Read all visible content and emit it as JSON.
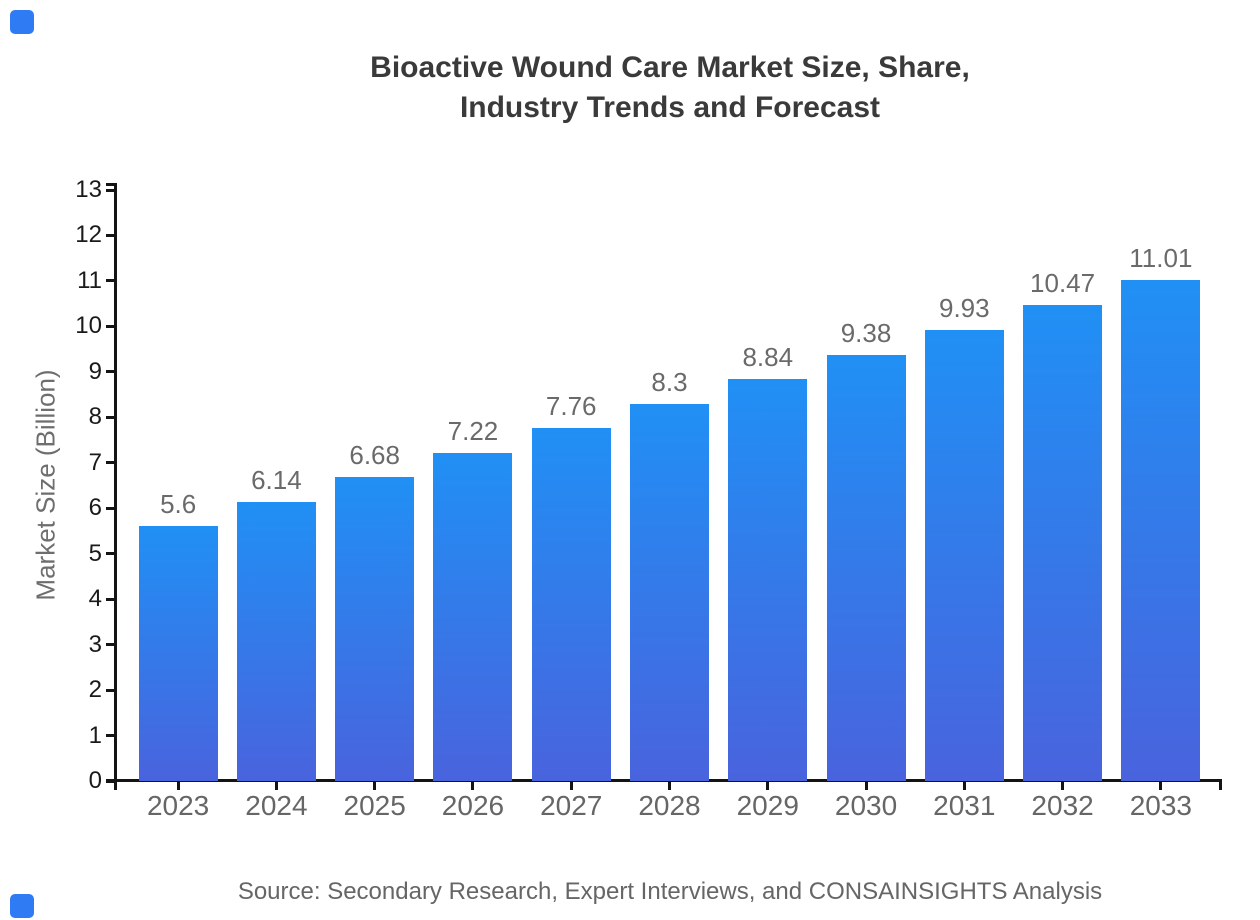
{
  "window": {
    "background": "#FFFFFF"
  },
  "brand": {
    "corner_square_color": "#2F7BF4"
  },
  "title": {
    "line1": "Bioactive Wound Care Market Size, Share,",
    "line2": "Industry Trends and Forecast"
  },
  "source_note": "Source: Secondary Research, Expert Interviews, and CONSAINSIGHTS Analysis",
  "colors": {
    "title_text": "#3A3A3A",
    "axis_line": "#141414",
    "y_tick_label": "#1A1A1A",
    "x_tick_label": "#666666",
    "value_label": "#6A6A6A",
    "y_axis_title": "#6E6E6E",
    "source_text": "#666666",
    "bar_gradient_top": "#2090F5",
    "bar_gradient_bottom": "#4963DD"
  },
  "chart_data": {
    "type": "bar",
    "title": "Bioactive Wound Care Market Size, Share, Industry Trends and Forecast",
    "categories": [
      "2023",
      "2024",
      "2025",
      "2026",
      "2027",
      "2028",
      "2029",
      "2030",
      "2031",
      "2032",
      "2033"
    ],
    "values": [
      5.6,
      6.14,
      6.68,
      7.22,
      7.76,
      8.3,
      8.84,
      9.38,
      9.93,
      10.47,
      11.01
    ],
    "value_labels": [
      "5.6",
      "6.14",
      "6.68",
      "7.22",
      "7.76",
      "8.3",
      "8.84",
      "9.38",
      "9.93",
      "10.47",
      "11.01"
    ],
    "xlabel": "",
    "ylabel": "Market Size (Billion)",
    "ylim": [
      0,
      13
    ],
    "ytick_interval": 1,
    "ytick_labels": [
      "0",
      "1",
      "2",
      "3",
      "4",
      "5",
      "6",
      "7",
      "8",
      "9",
      "10",
      "11",
      "12",
      "13"
    ],
    "grid": false,
    "legend": "none",
    "bar_color_top": "#2090F5",
    "bar_color_bottom": "#4963DD"
  }
}
